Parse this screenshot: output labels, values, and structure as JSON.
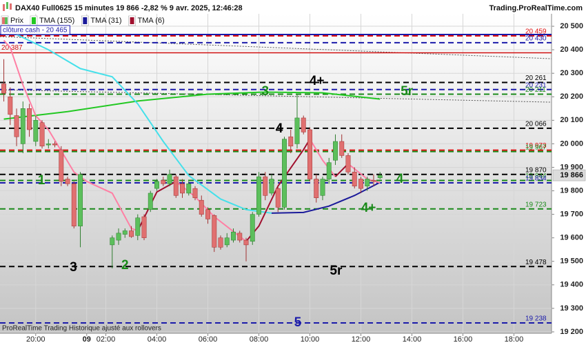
{
  "header": {
    "title": "DAX40 Full0625 15 minutes 19 866 -2,82 % 9 avr. 2025, 12:46:28",
    "site": "Trading.ProRealTime.com"
  },
  "footer": "ProRealTime Trading  Historique ajusté aux rollovers",
  "chart_data": {
    "type": "candlestick",
    "xlim": [
      -5.6,
      80.9
    ],
    "xticks": [
      {
        "value": 0,
        "label": "20:00"
      },
      {
        "value": 8,
        "label": "09",
        "bold": true
      },
      {
        "value": 11,
        "label": "02:00"
      },
      {
        "value": 19,
        "label": "04:00"
      },
      {
        "value": 27,
        "label": "06:00"
      },
      {
        "value": 35,
        "label": "08:00"
      },
      {
        "value": 43,
        "label": "10:00"
      },
      {
        "value": 51,
        "label": "12:00"
      },
      {
        "value": 59,
        "label": "14:00"
      },
      {
        "value": 67,
        "label": "16:00"
      },
      {
        "value": 75,
        "label": "18:00"
      }
    ],
    "ylim": [
      19194,
      20553
    ],
    "yticks": [
      {
        "value": 19200,
        "label": "19 200"
      },
      {
        "value": 19300,
        "label": "19 300"
      },
      {
        "value": 19400,
        "label": "19 400"
      },
      {
        "value": 19500,
        "label": "19 500"
      },
      {
        "value": 19600,
        "label": "19 600"
      },
      {
        "value": 19700,
        "label": "19 700"
      },
      {
        "value": 19800,
        "label": "19 800"
      },
      {
        "value": 19900,
        "label": "19 900"
      },
      {
        "value": 20000,
        "label": "20 000"
      },
      {
        "value": 20100,
        "label": "20 100"
      },
      {
        "value": 20200,
        "label": "20 200"
      },
      {
        "value": 20300,
        "label": "20 300"
      },
      {
        "value": 20400,
        "label": "20 400"
      },
      {
        "value": 20500,
        "label": "20 500"
      }
    ],
    "grid": true,
    "candles": {
      "name": "Prix",
      "up_color": "#5cbf5c",
      "down_color": "#e07070",
      "x": [
        -5,
        -4,
        -3,
        -2,
        -1,
        0,
        1,
        2,
        3,
        4,
        5,
        6,
        7,
        12,
        13,
        14,
        15,
        16,
        17,
        18,
        19,
        20,
        21,
        22,
        23,
        24,
        25,
        26,
        27,
        28,
        29,
        30,
        31,
        32,
        33,
        34,
        35,
        36,
        37,
        38,
        39,
        40,
        41,
        42,
        43,
        44,
        45,
        46,
        47,
        48,
        49,
        50,
        51,
        52,
        53,
        54
      ],
      "open": [
        20255,
        20200,
        20120,
        20000,
        20150,
        20010,
        20090,
        19995,
        20000,
        19975,
        19850,
        19830,
        19650,
        19570,
        19590,
        19615,
        19630,
        19610,
        19690,
        19720,
        19810,
        19845,
        19830,
        19860,
        19830,
        19790,
        19810,
        19760,
        19720,
        19695,
        19600,
        19570,
        19590,
        19620,
        19590,
        19585,
        19700,
        19860,
        19790,
        19810,
        19730,
        20030,
        20000,
        20110,
        20060,
        19850,
        19780,
        19850,
        19930,
        20010,
        19950,
        19880,
        19850,
        19820,
        19845,
        19855
      ],
      "high": [
        20360,
        20240,
        20150,
        20180,
        20170,
        20120,
        20100,
        20020,
        20010,
        19990,
        19860,
        19840,
        19880,
        19610,
        19640,
        19640,
        19650,
        19700,
        19700,
        19800,
        19850,
        19860,
        19890,
        19870,
        19850,
        19840,
        19820,
        19780,
        19730,
        19700,
        19610,
        19620,
        19640,
        19630,
        19600,
        19710,
        19880,
        19880,
        19870,
        19820,
        20030,
        20060,
        20210,
        20120,
        20070,
        19870,
        19860,
        19940,
        20040,
        20040,
        19960,
        19900,
        19860,
        19860,
        19870,
        19880
      ],
      "low": [
        20180,
        20080,
        19990,
        19960,
        20030,
        19990,
        19980,
        19980,
        19985,
        19820,
        19820,
        19640,
        19560,
        19470,
        19570,
        19600,
        19600,
        19590,
        19590,
        19710,
        19800,
        19820,
        19820,
        19770,
        19770,
        19780,
        19760,
        19690,
        19660,
        19540,
        19550,
        19560,
        19580,
        19580,
        19500,
        19570,
        19690,
        19760,
        19780,
        19710,
        19720,
        19960,
        19980,
        20040,
        19840,
        19750,
        19760,
        19830,
        19910,
        19940,
        19870,
        19810,
        19790,
        19800,
        19820,
        19850
      ],
      "close": [
        20215,
        20125,
        20030,
        20150,
        20060,
        20100,
        19990,
        20000,
        19995,
        19840,
        19830,
        19650,
        19870,
        19600,
        19620,
        19630,
        19605,
        19685,
        19600,
        19790,
        19840,
        19830,
        19870,
        19780,
        19790,
        19830,
        19770,
        19700,
        19680,
        19560,
        19560,
        19600,
        19625,
        19590,
        19570,
        19700,
        19860,
        19780,
        19850,
        19730,
        20020,
        19990,
        20110,
        20050,
        19850,
        19770,
        19850,
        19920,
        20010,
        19950,
        19880,
        19820,
        19810,
        19850,
        19840,
        19866
      ]
    },
    "series": [
      {
        "name": "TMA (155)",
        "color": "#22c822",
        "x": [
          -5,
          5,
          16,
          27,
          36,
          45,
          54
        ],
        "values": [
          20105,
          20137,
          20182,
          20211,
          20220,
          20217,
          20190
        ]
      },
      {
        "name": "TMA (31)",
        "color": "#1a1a9a",
        "falling_color": "#45e0ea",
        "x": [
          -3,
          2,
          7,
          12,
          16,
          20,
          24,
          29,
          33,
          37,
          42,
          46,
          50,
          54
        ],
        "values": [
          20465,
          20400,
          20320,
          20285,
          20170,
          20010,
          19865,
          19765,
          19720,
          19705,
          19708,
          19735,
          19780,
          19836
        ]
      },
      {
        "name": "TMA (6)",
        "color": "#a0102e",
        "falling_color": "#ff7fa4",
        "x": [
          -5,
          -4,
          -2,
          0,
          2,
          4,
          6,
          8,
          12,
          15,
          16,
          19,
          22,
          25,
          28,
          33,
          35,
          38,
          42,
          43,
          45,
          47,
          49,
          52,
          54
        ],
        "values": [
          20440,
          20410,
          20250,
          20120,
          20060,
          19970,
          19880,
          19840,
          19790,
          19640,
          19630,
          19795,
          19840,
          19775,
          19690,
          19585,
          19650,
          19820,
          19975,
          20020,
          19930,
          19860,
          19915,
          19850,
          19834
        ]
      }
    ],
    "close_cash": {
      "label": "clôture cash - 20 465",
      "value": 20465,
      "color": "#1a1aaa"
    },
    "levels": [
      {
        "value": 20459,
        "label": "20 459",
        "color": "#e01010",
        "style": "dashed"
      },
      {
        "value": 20430,
        "label": "20 430",
        "color": "#1a1aaa",
        "style": "dashed"
      },
      {
        "value": 20387,
        "label": "20 387",
        "color": "#d01010",
        "style": "solid",
        "label_side": "left"
      },
      {
        "value": 20261,
        "label": "20 261",
        "color": "#000000",
        "style": "dashed"
      },
      {
        "value": 20231,
        "label": "20 231",
        "color": "#1a1aaa",
        "style": "dashed"
      },
      {
        "value": 20211,
        "label": "20 211",
        "color": "#1a8a1a",
        "style": "dashed"
      },
      {
        "value": 20066,
        "label": "20 066",
        "color": "#000000",
        "style": "dashed"
      },
      {
        "value": 19973,
        "label": "19 973",
        "color": "#e01010",
        "style": "dashed"
      },
      {
        "value": 19967,
        "label": "19 967",
        "color": "#1a8a1a",
        "style": "dashed"
      },
      {
        "value": 19870,
        "label": "19 870",
        "color": "#000000",
        "style": "dashed"
      },
      {
        "value": 19844,
        "label": "19 844",
        "color": "#1a8a1a",
        "style": "dashed"
      },
      {
        "value": 19834,
        "label": "19 834",
        "color": "#1a1aaa",
        "style": "dashed"
      },
      {
        "value": 19723,
        "label": "19 723",
        "color": "#1a8a1a",
        "style": "dashed"
      },
      {
        "value": 19478,
        "label": "19 478",
        "color": "#000000",
        "style": "dashed"
      },
      {
        "value": 19238,
        "label": "19 238",
        "color": "#1a1aaa",
        "style": "dashed"
      }
    ],
    "trendlines": [
      {
        "x": [
          -5.6,
          80.9
        ],
        "y": [
          20456,
          20362
        ]
      },
      {
        "x": [
          -5.6,
          80.9
        ],
        "y": [
          20230,
          20177
        ]
      }
    ],
    "annotations": [
      {
        "text": "1",
        "x": 0.9,
        "y": 19843,
        "color": "#1a8a1a"
      },
      {
        "text": "3",
        "x": 5.9,
        "y": 19473,
        "color": "#000000"
      },
      {
        "text": "2",
        "x": 14,
        "y": 19482,
        "color": "#1a8a1a"
      },
      {
        "text": "3",
        "x": 36,
        "y": 20221,
        "color": "#1a8a1a"
      },
      {
        "text": "4+",
        "x": 44.1,
        "y": 20265,
        "color": "#000000"
      },
      {
        "text": "4",
        "x": 38.2,
        "y": 20063,
        "color": "#000000"
      },
      {
        "text": "5r",
        "x": 58.2,
        "y": 20221,
        "color": "#1a8a1a"
      },
      {
        "text": "5r",
        "x": 47.1,
        "y": 19458,
        "color": "#000000"
      },
      {
        "text": "4",
        "x": 57.1,
        "y": 19848,
        "color": "#1a8a1a"
      },
      {
        "text": "4+",
        "x": 52.2,
        "y": 19725,
        "color": "#1a8a1a"
      },
      {
        "text": "5",
        "x": 41.1,
        "y": 19238,
        "color": "#1a1aaa"
      }
    ],
    "last": {
      "value": 19866,
      "label": "19 866"
    }
  }
}
